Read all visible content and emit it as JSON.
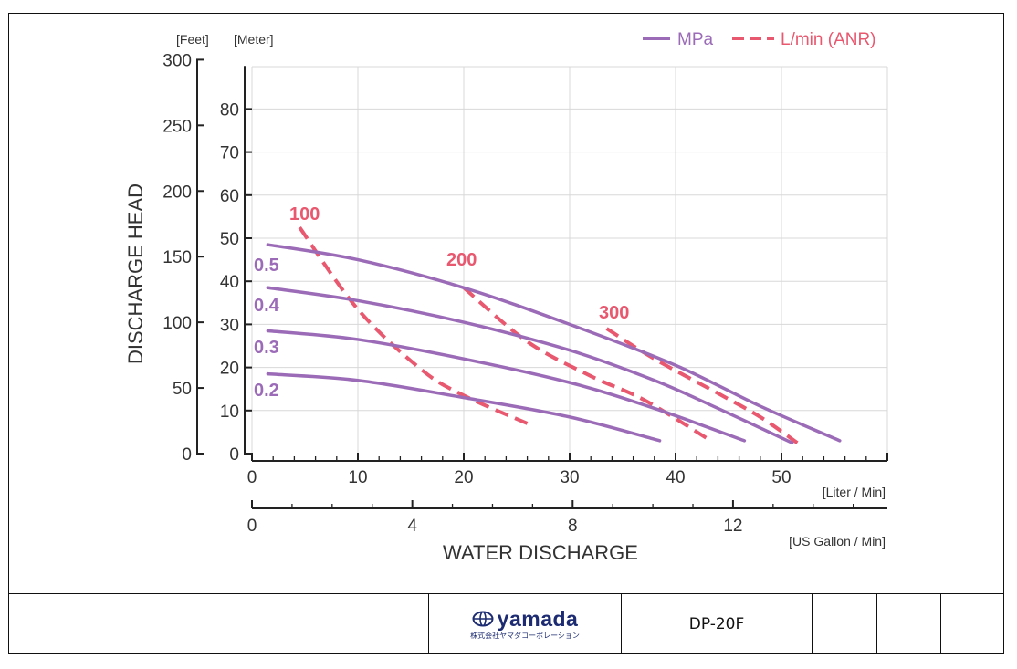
{
  "chart_data": {
    "type": "line",
    "title": "",
    "xlabel": "WATER DISCHARGE",
    "ylabel": "DISCHARGE HEAD",
    "x_unit_primary": "[Liter / Min]",
    "x_unit_secondary": "[US Gallon / Min]",
    "y_unit_feet": "[Feet]",
    "y_unit_meter": "[Meter]",
    "xlim": [
      0,
      60
    ],
    "ylim": [
      0,
      90
    ],
    "x_ticks": [
      "0",
      "10",
      "20",
      "30",
      "40",
      "50"
    ],
    "x_ticks_gallon": [
      "0",
      "4",
      "8",
      "12"
    ],
    "y_ticks_meter": [
      "0",
      "10",
      "20",
      "30",
      "40",
      "50",
      "60",
      "70",
      "80"
    ],
    "y_ticks_feet": [
      "0",
      "50",
      "100",
      "150",
      "200",
      "250",
      "300"
    ],
    "grid": true,
    "legend": {
      "position": "top-right",
      "entries": [
        "MPa",
        "L/min (ANR)"
      ]
    },
    "pressure_series": [
      {
        "name": "0.5",
        "x": [
          1.5,
          10,
          20,
          30,
          40,
          48,
          55.5
        ],
        "y": [
          48.5,
          45,
          38.5,
          30,
          20.5,
          11,
          3
        ]
      },
      {
        "name": "0.4",
        "x": [
          1.5,
          10,
          20,
          30,
          38,
          44,
          51
        ],
        "y": [
          38.5,
          35.5,
          30.5,
          24,
          17,
          10.5,
          2.5
        ]
      },
      {
        "name": "0.3",
        "x": [
          1.5,
          10,
          20,
          30,
          38,
          46.5
        ],
        "y": [
          28.5,
          26.5,
          22,
          16.5,
          10.5,
          3
        ]
      },
      {
        "name": "0.2",
        "x": [
          1.5,
          10,
          20,
          30,
          38.5
        ],
        "y": [
          18.5,
          17,
          13,
          8.5,
          3
        ]
      }
    ],
    "airflow_series": [
      {
        "name": "100",
        "x": [
          4.5,
          10,
          16,
          20,
          26
        ],
        "y": [
          52.5,
          33.5,
          19.5,
          13.5,
          7
        ]
      },
      {
        "name": "200",
        "x": [
          20,
          26,
          32,
          37,
          43
        ],
        "y": [
          38.5,
          26,
          18,
          12.5,
          3.5
        ]
      },
      {
        "name": "300",
        "x": [
          33.5,
          38,
          44,
          48,
          51.5
        ],
        "y": [
          29,
          22,
          14,
          8.5,
          2.5
        ]
      }
    ],
    "colors": {
      "pressure": "#9b6bb8",
      "airflow": "#e8586f",
      "grid": "#d8d8d8",
      "axis": "#222222"
    }
  },
  "footer": {
    "logo_name": "yamada",
    "logo_subtext": "株式会社ヤマダコーポレーション",
    "model": "DP-20F"
  }
}
